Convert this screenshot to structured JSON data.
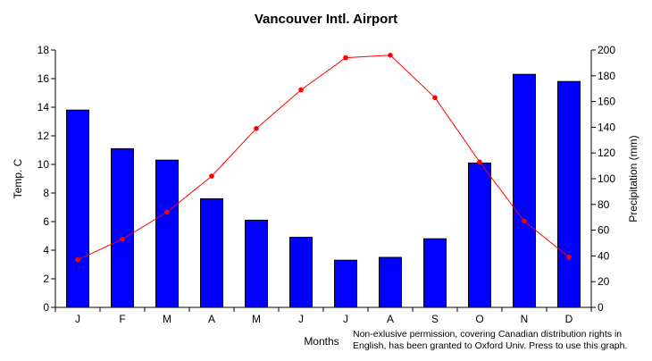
{
  "chart_data": {
    "type": "bar",
    "title": "Vancouver Intl. Airport",
    "categories": [
      "J",
      "F",
      "M",
      "A",
      "M",
      "J",
      "J",
      "A",
      "S",
      "O",
      "N",
      "D"
    ],
    "xlabel": "Months",
    "ylabel": "Temp. C",
    "y2label": "Precipitation (mm)",
    "ylim": [
      0,
      18
    ],
    "y2lim": [
      0,
      200
    ],
    "yticks": [
      0,
      2,
      4,
      6,
      8,
      10,
      12,
      14,
      16,
      18
    ],
    "y2ticks": [
      0,
      20,
      40,
      60,
      80,
      100,
      120,
      140,
      160,
      180,
      200
    ],
    "series": [
      {
        "type": "bar",
        "axis": "y",
        "color": "#0000ff",
        "values": [
          13.8,
          11.1,
          10.3,
          7.6,
          6.1,
          4.9,
          3.3,
          3.5,
          4.8,
          10.1,
          16.3,
          15.8
        ]
      },
      {
        "type": "line",
        "axis": "y2",
        "color": "#ff0000",
        "values": [
          37,
          53,
          74,
          102,
          139,
          169,
          194,
          196,
          163,
          113,
          67,
          39
        ]
      }
    ],
    "grid": false,
    "legend": "none"
  },
  "notes": {
    "line1": "Non-exlusive permission, covering Canadian distribution rights in",
    "line2": "English, has been granted to Oxford Univ. Press to use this graph."
  }
}
